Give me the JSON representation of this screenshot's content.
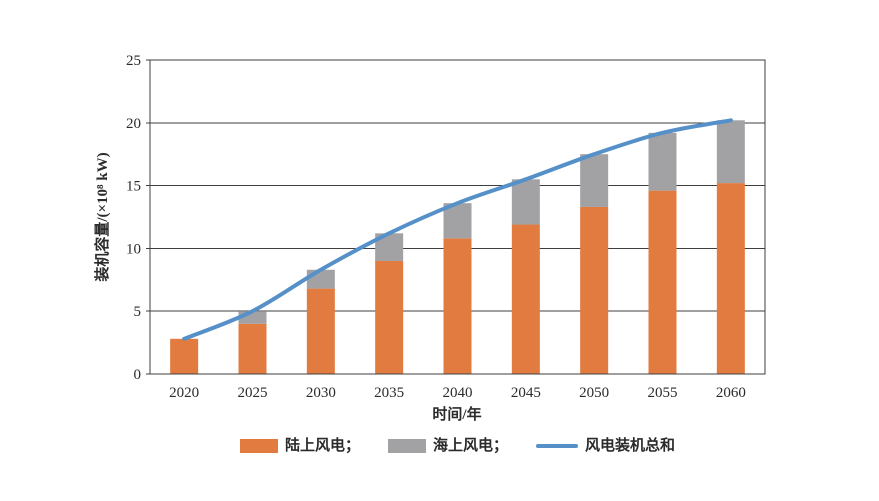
{
  "chart_data": {
    "type": "bar",
    "stacked": true,
    "title": "",
    "categories": [
      "2020",
      "2025",
      "2030",
      "2035",
      "2040",
      "2045",
      "2050",
      "2055",
      "2060"
    ],
    "series": [
      {
        "id": "onshore",
        "name": "陆上风电",
        "kind": "bar",
        "color": "#E17B3F",
        "values": [
          2.8,
          4.0,
          6.8,
          9.0,
          10.8,
          11.9,
          13.3,
          14.6,
          15.2
        ]
      },
      {
        "id": "offshore",
        "name": "海上风电",
        "kind": "bar",
        "color": "#A2A2A4",
        "values": [
          0,
          1.0,
          1.5,
          2.2,
          2.8,
          3.6,
          4.2,
          4.6,
          5.0
        ]
      },
      {
        "id": "total",
        "name": "风电装机总和",
        "kind": "line",
        "color": "#5590C8",
        "values": [
          2.8,
          5.0,
          8.3,
          11.2,
          13.6,
          15.5,
          17.5,
          19.2,
          20.2
        ]
      }
    ],
    "xlabel": "时间/年",
    "ylabel": "装机容量/(×10⁸ kW)",
    "ylim": [
      0,
      25
    ],
    "yticks": [
      0,
      5,
      10,
      15,
      20,
      25
    ],
    "grid": "horizontal",
    "legend_position": "bottom"
  },
  "legend": {
    "items": [
      {
        "id": "onshore",
        "label": "陆上风电；",
        "swatch": "bar",
        "color": "#E17B3F"
      },
      {
        "id": "offshore",
        "label": "海上风电；",
        "swatch": "bar",
        "color": "#A2A2A4"
      },
      {
        "id": "total",
        "label": "风电装机总和",
        "swatch": "line",
        "color": "#5590C8"
      }
    ]
  },
  "style": {
    "axis_color": "#3f3f3f",
    "text_color": "#2b2b2b"
  }
}
